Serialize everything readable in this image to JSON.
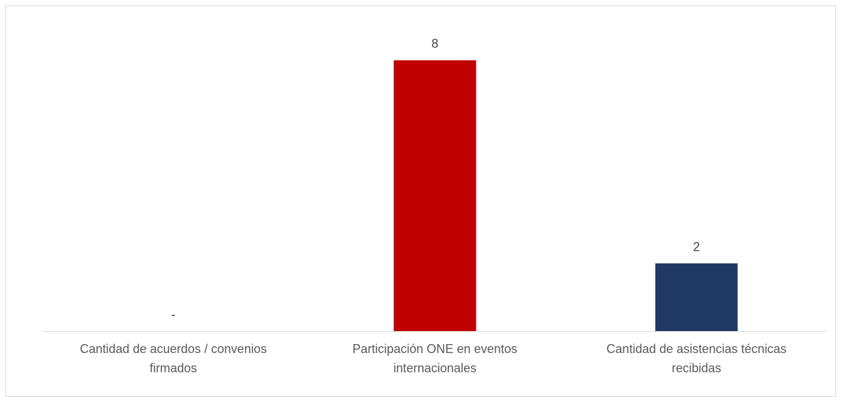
{
  "chart_data": {
    "type": "bar",
    "categories": [
      [
        "Cantidad de acuerdos / convenios",
        "firmados"
      ],
      [
        "Participación ONE en eventos",
        "internacionales"
      ],
      [
        "Cantidad de asistencias técnicas",
        "recibidas"
      ]
    ],
    "values": [
      0,
      8,
      2
    ],
    "data_labels": [
      "-",
      "8",
      "2"
    ],
    "colors": [
      "#c00000",
      "#c00000",
      "#1f3864"
    ],
    "axis_color": "#d9d9d9",
    "ylim": [
      0,
      8.4
    ],
    "grid": false,
    "legend": "none"
  }
}
